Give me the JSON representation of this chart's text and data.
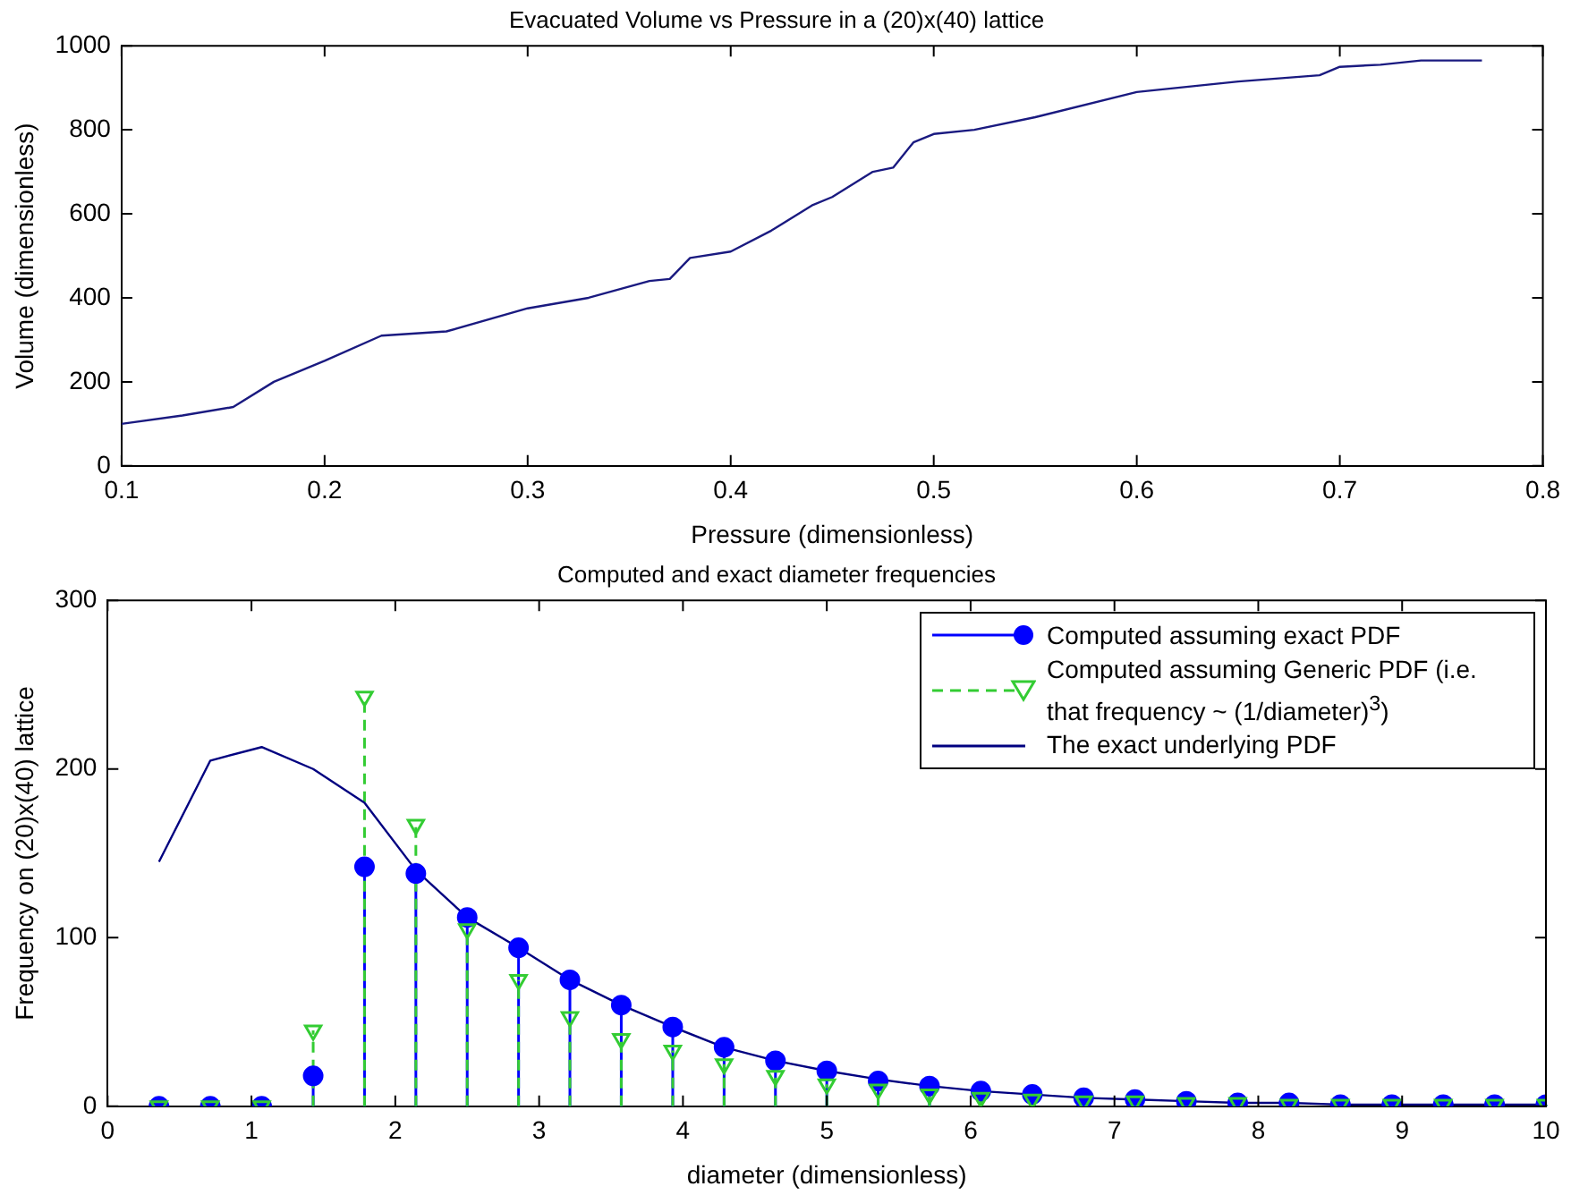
{
  "chart_data": [
    {
      "type": "line",
      "title": "Evacuated Volume vs Pressure in a (20)x(40) lattice",
      "xlabel": "Pressure (dimensionless)",
      "ylabel": "Volume (dimensionless)",
      "xlim": [
        0.1,
        0.8
      ],
      "xticks": [
        0.1,
        0.2,
        0.3,
        0.4,
        0.5,
        0.6,
        0.7,
        0.8
      ],
      "ylim": [
        0,
        1000
      ],
      "yticks": [
        0,
        200,
        400,
        600,
        800,
        1000
      ],
      "grid": false,
      "legend": false,
      "marker": "none",
      "series": [
        {
          "color": "#1a1a80",
          "x": [
            0.1,
            0.13,
            0.155,
            0.175,
            0.2,
            0.228,
            0.26,
            0.3,
            0.33,
            0.36,
            0.37,
            0.38,
            0.4,
            0.42,
            0.44,
            0.45,
            0.47,
            0.48,
            0.49,
            0.5,
            0.52,
            0.55,
            0.6,
            0.65,
            0.69,
            0.7,
            0.72,
            0.74,
            0.77
          ],
          "values": [
            100,
            120,
            140,
            200,
            250,
            310,
            320,
            375,
            400,
            440,
            445,
            495,
            510,
            560,
            620,
            640,
            700,
            710,
            770,
            790,
            800,
            830,
            890,
            915,
            930,
            950,
            955,
            965,
            965
          ]
        }
      ]
    },
    {
      "type": "lollipop",
      "title": "Computed and exact diameter frequencies",
      "xlabel": "diameter (dimensionless)",
      "ylabel": "Frequency on (20)x(40) lattice",
      "xlim": [
        0,
        10
      ],
      "xticks": [
        0,
        1,
        2,
        3,
        4,
        5,
        6,
        7,
        8,
        9,
        10
      ],
      "ylim": [
        0,
        300
      ],
      "yticks": [
        0,
        100,
        200,
        300
      ],
      "grid": false,
      "legend": "top right",
      "x": [
        0.357,
        0.714,
        1.071,
        1.429,
        1.786,
        2.143,
        2.5,
        2.857,
        3.214,
        3.571,
        3.929,
        4.286,
        4.643,
        5,
        5.357,
        5.714,
        6.071,
        6.429,
        6.786,
        7.143,
        7.5,
        7.857,
        8.214,
        8.571,
        8.929,
        9.286,
        9.643,
        10
      ],
      "series": [
        {
          "type": "lollipop",
          "name": "Computed assuming exact PDF",
          "color": "#0000ff",
          "marker": "circle",
          "line_style": "solid",
          "values": [
            0,
            0,
            0,
            18,
            142,
            138,
            112,
            94,
            75,
            60,
            47,
            35,
            27,
            21,
            15,
            12,
            9,
            7,
            5,
            4,
            3,
            2,
            2,
            1,
            1,
            1,
            1,
            1
          ]
        },
        {
          "type": "lollipop",
          "name": "Computed assuming Generic PDF (i.e. that frequency ~ (1/diameter)$^{3}$)",
          "color": "#33cc33",
          "marker": "triangle",
          "line_style": "dashed",
          "values": [
            0,
            0,
            0,
            45,
            243,
            167,
            105,
            75,
            53,
            40,
            33,
            25,
            18,
            13,
            10,
            7,
            5,
            4,
            3,
            3,
            2,
            2,
            1,
            1,
            1,
            1,
            1,
            1
          ]
        },
        {
          "type": "line",
          "name": "The exact underlying PDF",
          "color": "#000080",
          "marker": "none",
          "line_style": "solid",
          "values": [
            145,
            205,
            213,
            200,
            180,
            140,
            112,
            94,
            75,
            60,
            47,
            35,
            27,
            21,
            16,
            12,
            9,
            7,
            5,
            4,
            3,
            2,
            2,
            1,
            1,
            1,
            1,
            1
          ]
        }
      ]
    }
  ]
}
